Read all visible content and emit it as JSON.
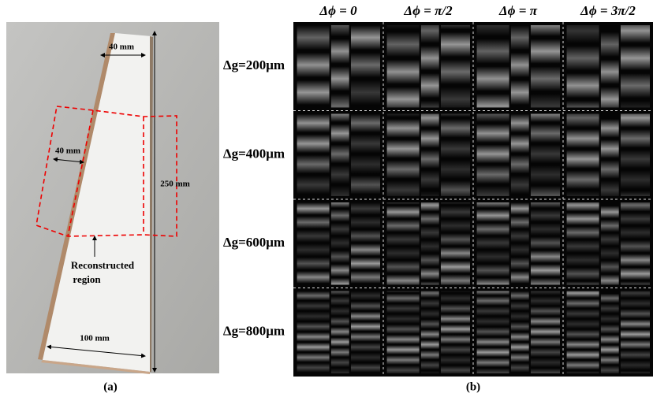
{
  "panel_a": {
    "labels": {
      "top_width": "40 mm",
      "left_width": "40 mm",
      "height": "250 mm",
      "bottom_width": "100 mm"
    },
    "region_label": [
      "Reconstructed",
      "region"
    ],
    "caption": "(a)"
  },
  "panel_b": {
    "column_headers": [
      "Δϕ = 0",
      "Δϕ = π/2",
      "Δϕ = π",
      "Δϕ = 3π/2"
    ],
    "row_labels": [
      "Δg=200μm",
      "Δg=400μm",
      "Δg=600μm",
      "Δg=800μm"
    ],
    "caption": "(b)"
  }
}
